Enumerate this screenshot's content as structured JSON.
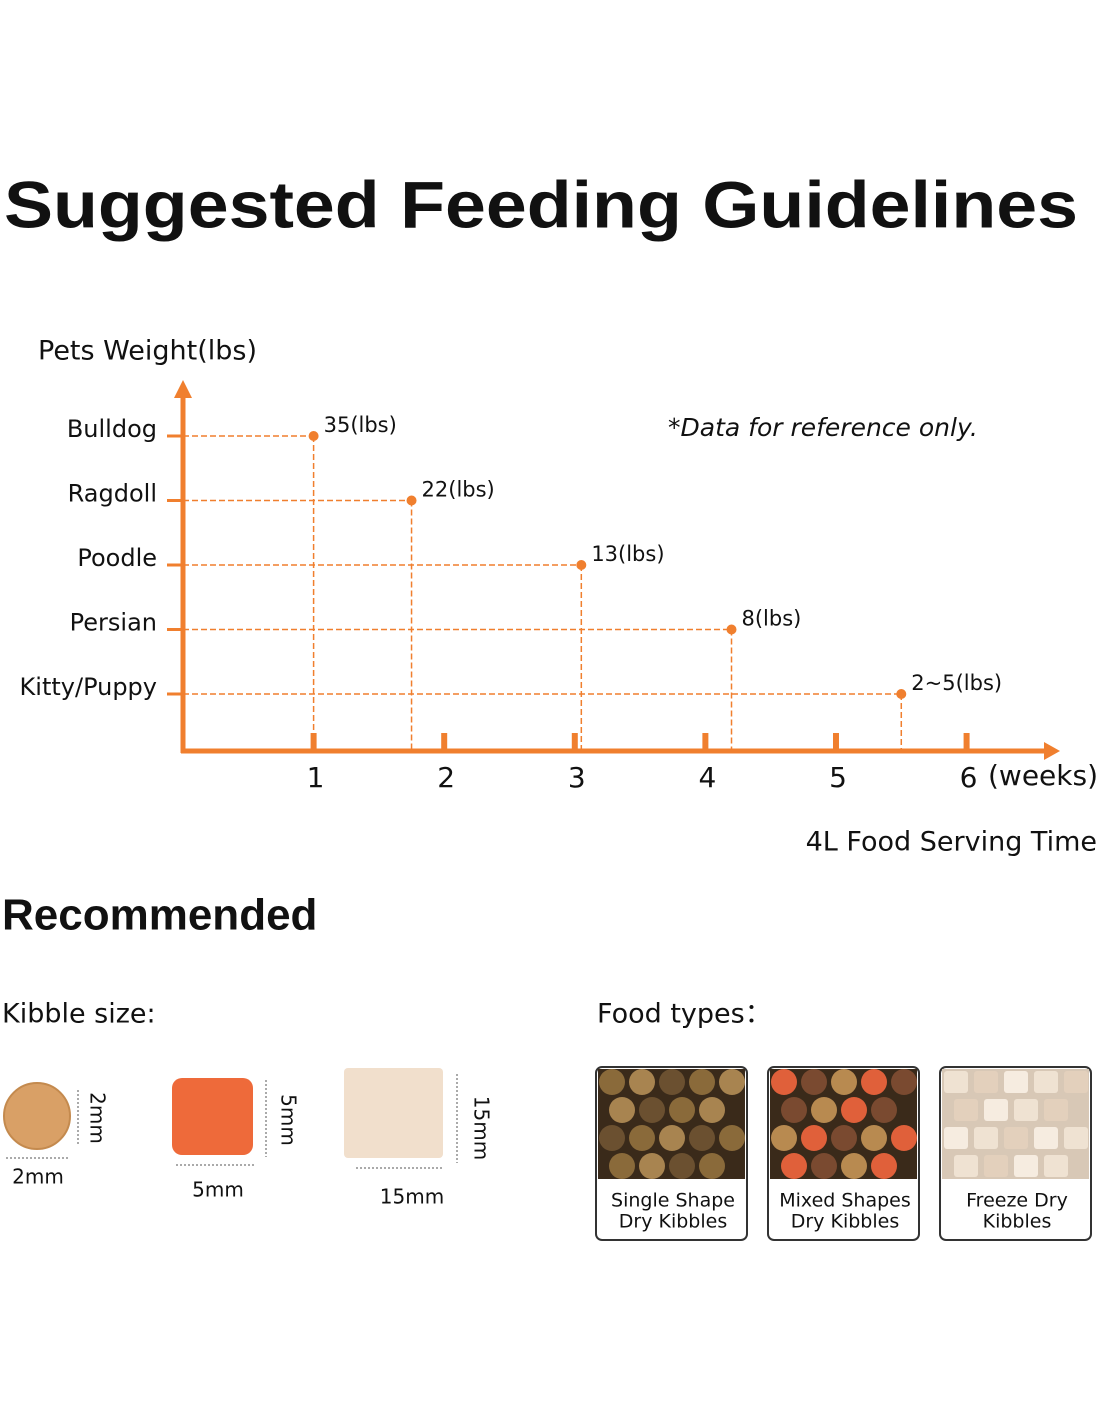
{
  "chart_data": {
    "type": "dot",
    "title": "Suggested Feeding Guidelines",
    "y_label": "Pets Weight(lbs)",
    "x_label": "4L Food Serving Time",
    "x_unit": "(weeks)",
    "annotation": "*Data for reference only.",
    "categories": [
      "Bulldog",
      "Ragdoll",
      "Poodle",
      "Persian",
      "Kitty/Puppy"
    ],
    "values": [
      1,
      1.75,
      3.05,
      4.2,
      5.5
    ],
    "weight_labels": [
      "35(lbs)",
      "22(lbs)",
      "13(lbs)",
      "8(lbs)",
      "2~5(lbs)"
    ],
    "xlim": [
      0,
      6.7
    ],
    "xticks": [
      1,
      2,
      3,
      4,
      5,
      6
    ],
    "color": "#f07f2e"
  },
  "recommended": {
    "title": "Recommended",
    "kibble_size": {
      "label": "Kibble size:",
      "items": [
        {
          "width": "2mm",
          "height": "2mm"
        },
        {
          "width": "5mm",
          "height": "5mm"
        },
        {
          "width": "15mm",
          "height": "15mm"
        }
      ]
    },
    "food_types": {
      "label": "Food types：",
      "items": [
        [
          "Single Shape",
          "Dry Kibbles"
        ],
        [
          "Mixed Shapes",
          "Dry Kibbles"
        ],
        [
          "Freeze Dry",
          "Kibbles"
        ]
      ]
    }
  }
}
